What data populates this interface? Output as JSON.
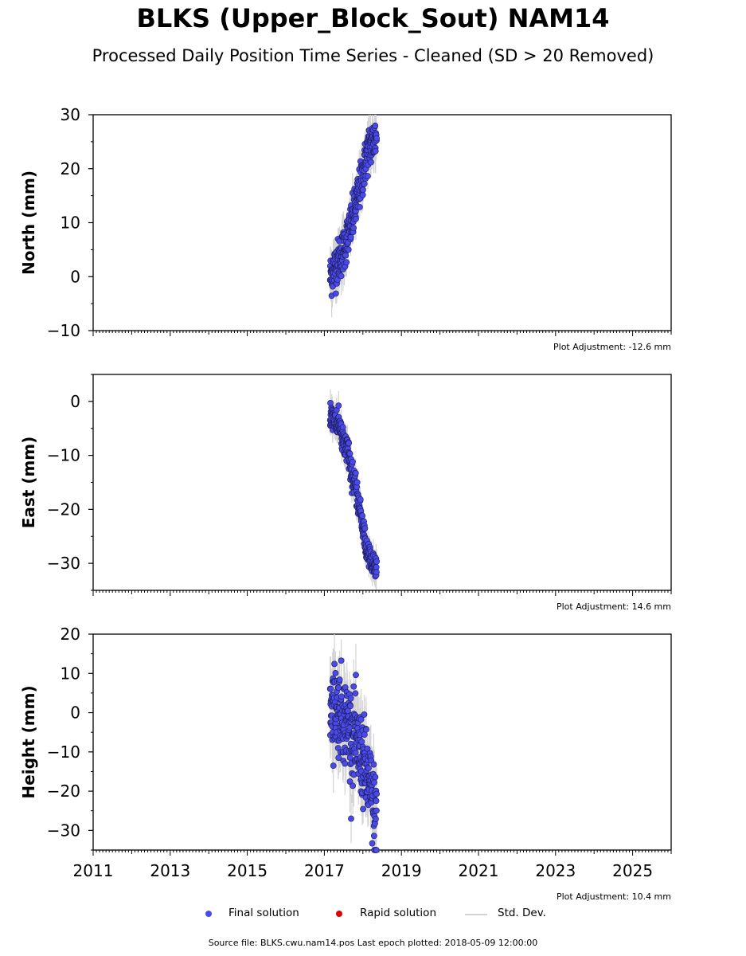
{
  "title": "BLKS (Upper_Block_Sout) NAM14",
  "subtitle": "Processed Daily Position Time Series - Cleaned (SD > 20 Removed)",
  "legend": {
    "final": "Final solution",
    "rapid": "Rapid solution",
    "std": "Std. Dev."
  },
  "colors": {
    "final": "#4a4ae8",
    "rapid": "#e00000",
    "std": "#d3d3d3"
  },
  "source_text": "Source file: BLKS.cwu.nam14.pos  Last epoch plotted: 2018-05-09 12:00:00",
  "chart_data": [
    {
      "type": "scatter",
      "ylabel": "North (mm)",
      "ylim": [
        -10,
        30
      ],
      "yticks": [
        -10,
        0,
        10,
        20,
        30
      ],
      "xlim": [
        2011,
        2026
      ],
      "adjustment": "Plot Adjustment: -12.6 mm",
      "series": [
        {
          "name": "Final solution",
          "trend": [
            [
              2017.15,
              0
            ],
            [
              2017.5,
              5
            ],
            [
              2017.75,
              11
            ],
            [
              2018.0,
              19
            ],
            [
              2018.15,
              24
            ],
            [
              2018.36,
              26
            ]
          ],
          "noise": 2.0,
          "sd": 3
        }
      ]
    },
    {
      "type": "scatter",
      "ylabel": "East (mm)",
      "ylim": [
        -35,
        5
      ],
      "yticks": [
        -30,
        -20,
        -10,
        0
      ],
      "xlim": [
        2011,
        2026
      ],
      "adjustment": "Plot Adjustment: 14.6 mm",
      "series": [
        {
          "name": "Final solution",
          "trend": [
            [
              2017.15,
              -2
            ],
            [
              2017.4,
              -5
            ],
            [
              2017.6,
              -9
            ],
            [
              2017.8,
              -16
            ],
            [
              2018.0,
              -23
            ],
            [
              2018.1,
              -28
            ],
            [
              2018.36,
              -31
            ]
          ],
          "noise": 1.2,
          "sd": 2
        }
      ]
    },
    {
      "type": "scatter",
      "ylabel": "Height (mm)",
      "ylim": [
        -35,
        20
      ],
      "yticks": [
        -30,
        -20,
        -10,
        0,
        10,
        20
      ],
      "xlim": [
        2011,
        2026
      ],
      "xticks": [
        2011,
        2013,
        2015,
        2017,
        2019,
        2021,
        2023,
        2025
      ],
      "adjustment": "Plot Adjustment: 10.4 mm",
      "series": [
        {
          "name": "Final solution",
          "trend": [
            [
              2017.15,
              3
            ],
            [
              2017.45,
              0
            ],
            [
              2017.7,
              -5
            ],
            [
              2018.0,
              -12
            ],
            [
              2018.2,
              -20
            ],
            [
              2018.36,
              -27
            ]
          ],
          "noise": 5.5,
          "sd": 6
        }
      ]
    }
  ]
}
